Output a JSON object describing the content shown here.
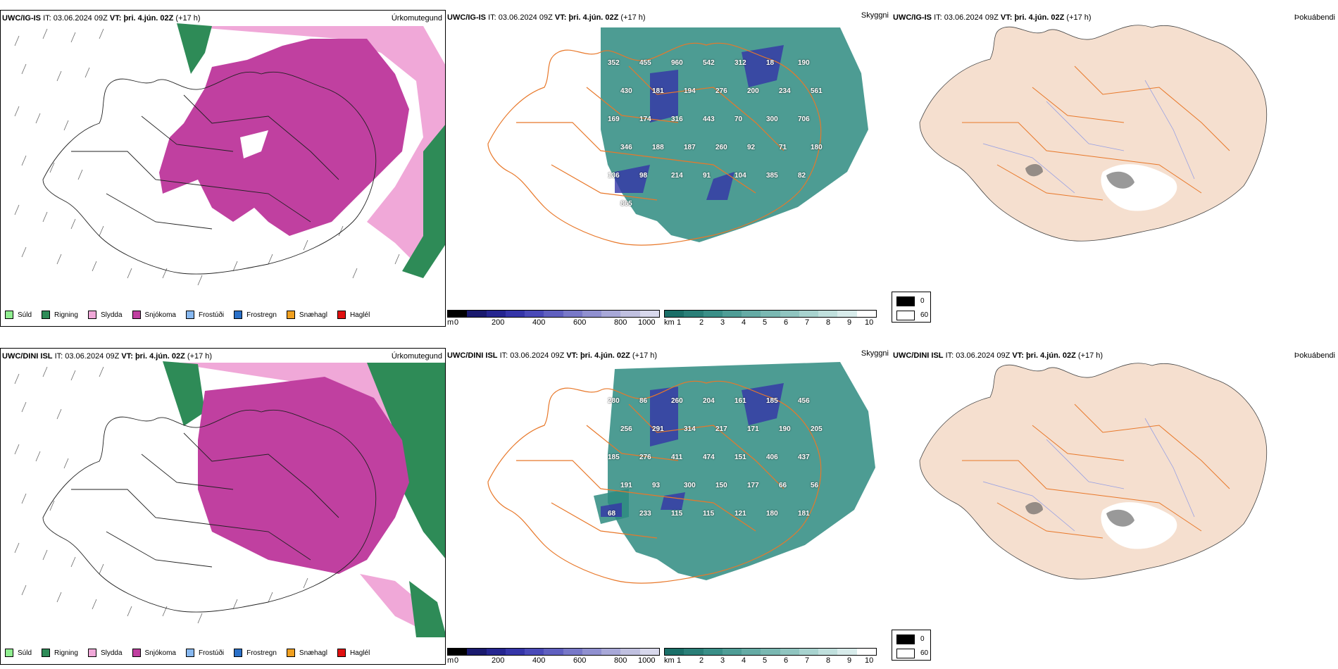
{
  "rows": [
    {
      "precip": {
        "model": "UWC/IG-IS",
        "it_label": "IT:",
        "it_value": "03.06.2024 09Z",
        "vt_label": "VT:",
        "vt_value": "þri. 4.jún. 02Z",
        "lead": "(+17 h)",
        "title": "Úrkomutegund"
      },
      "cloud": {
        "model": "UWC/IG-IS",
        "it_label": "IT:",
        "it_value": "03.06.2024 09Z",
        "vt_label": "VT:",
        "vt_value": "þri. 4.jún. 02Z",
        "lead": "(+17 h)",
        "title": "Skyggni",
        "labels": [
          "352",
          "455",
          "960",
          "542",
          "312",
          "18",
          "190",
          "430",
          "181",
          "194",
          "276",
          "200",
          "234",
          "561",
          "169",
          "174",
          "316",
          "443",
          "70",
          "300",
          "706",
          "346",
          "188",
          "187",
          "260",
          "92",
          "71",
          "180",
          "136",
          "98",
          "214",
          "91",
          "104",
          "385",
          "82",
          "865"
        ]
      },
      "fog": {
        "model": "UWC/IG-IS",
        "it_label": "IT:",
        "it_value": "03.06.2024 09Z",
        "vt_label": "VT:",
        "vt_value": "þri. 4.jún. 02Z",
        "lead": "(+17 h)",
        "title": "Þokuábendi"
      }
    },
    {
      "precip": {
        "model": "UWC/DINI ISL",
        "it_label": "IT:",
        "it_value": "03.06.2024 09Z",
        "vt_label": "VT:",
        "vt_value": "þri. 4.jún. 02Z",
        "lead": "(+17 h)",
        "title": "Úrkomutegund"
      },
      "cloud": {
        "model": "UWC/DINI ISL",
        "it_label": "IT:",
        "it_value": "03.06.2024 09Z",
        "vt_label": "VT:",
        "vt_value": "þri. 4.jún. 02Z",
        "lead": "(+17 h)",
        "title": "Skyggni",
        "labels": [
          "280",
          "86",
          "260",
          "204",
          "161",
          "185",
          "456",
          "256",
          "291",
          "314",
          "217",
          "171",
          "190",
          "205",
          "185",
          "276",
          "411",
          "474",
          "151",
          "406",
          "437",
          "191",
          "93",
          "300",
          "150",
          "177",
          "66",
          "56",
          "68",
          "233",
          "115",
          "115",
          "121",
          "180",
          "181"
        ]
      },
      "fog": {
        "model": "UWC/DINI ISL",
        "it_label": "IT:",
        "it_value": "03.06.2024 09Z",
        "vt_label": "VT:",
        "vt_value": "þri. 4.jún. 02Z",
        "lead": "(+17 h)",
        "title": "Þokuábendi"
      }
    }
  ],
  "precip_legend": [
    {
      "label": "Súld",
      "color": "#90ee90"
    },
    {
      "label": "Rigning",
      "color": "#2e8b57"
    },
    {
      "label": "Slydda",
      "color": "#f0a8d8"
    },
    {
      "label": "Snjókoma",
      "color": "#c040a0"
    },
    {
      "label": "Frostúði",
      "color": "#87b8f0"
    },
    {
      "label": "Frostregn",
      "color": "#2a70c8"
    },
    {
      "label": "Snæhagl",
      "color": "#f0a020"
    },
    {
      "label": "Haglél",
      "color": "#e01010"
    }
  ],
  "height_scale": {
    "unit": "m",
    "ticks": [
      "0",
      "200",
      "400",
      "600",
      "800",
      "1000"
    ],
    "colors": [
      "#000000",
      "#1a1a6e",
      "#252590",
      "#3535a8",
      "#4a4ab8",
      "#6060c0",
      "#7878c8",
      "#9090d0",
      "#a8a8d8",
      "#c0c0e0",
      "#d8d8ec"
    ]
  },
  "vis_scale": {
    "unit": "km",
    "ticks": [
      "1",
      "2",
      "3",
      "4",
      "5",
      "6",
      "7",
      "8",
      "9",
      "10"
    ],
    "colors": [
      "#1b6f68",
      "#2a7f78",
      "#3a8f88",
      "#4f9d96",
      "#65aba5",
      "#7ab8b2",
      "#90c5c0",
      "#a8d3cf",
      "#c0e0dd",
      "#d8eceb",
      "#ffffff"
    ]
  },
  "fog_key": {
    "items": [
      {
        "label": "0",
        "color": "#000000"
      },
      {
        "label": "60",
        "color": "#ffffff"
      }
    ]
  },
  "colors": {
    "snow": "#c040a0",
    "sleet": "#f0a8d8",
    "rain": "#2e8b57",
    "vis": "#2e8b80",
    "land": "#f5dfcf",
    "roads": "#e8782a"
  }
}
